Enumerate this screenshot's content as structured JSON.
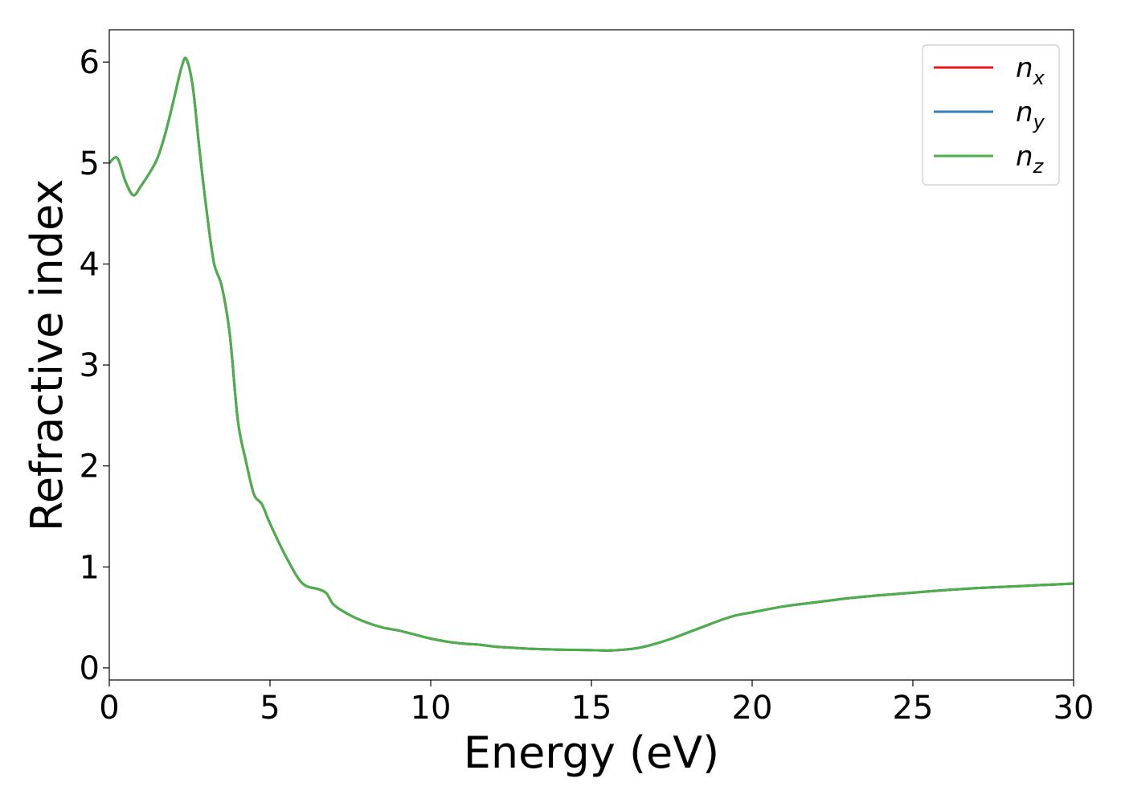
{
  "chart_data": {
    "type": "line",
    "xlabel": "Energy (eV)",
    "ylabel": "Refractive index",
    "xlim": [
      0,
      30
    ],
    "ylim": [
      -0.12,
      6.32
    ],
    "xticks": [
      0,
      5,
      10,
      15,
      20,
      25,
      30
    ],
    "yticks": [
      0,
      1,
      2,
      3,
      4,
      5,
      6
    ],
    "grid": false,
    "legend_position": "top-right",
    "x": [
      0,
      0.25,
      0.5,
      0.75,
      1.0,
      1.25,
      1.5,
      1.75,
      2.0,
      2.25,
      2.4,
      2.6,
      2.8,
      3.0,
      3.25,
      3.5,
      3.75,
      4.0,
      4.25,
      4.5,
      4.75,
      5.0,
      5.5,
      6.0,
      6.5,
      6.75,
      7.0,
      7.5,
      8.0,
      8.5,
      9.0,
      9.5,
      10.0,
      10.5,
      11.0,
      11.5,
      12.0,
      12.5,
      13.0,
      13.5,
      14.0,
      14.5,
      15.0,
      15.5,
      16.0,
      16.5,
      17.0,
      17.5,
      18.0,
      18.5,
      19.0,
      19.5,
      20.0,
      21.0,
      22.0,
      23.0,
      24.0,
      25.0,
      26.0,
      27.0,
      28.0,
      29.0,
      30.0
    ],
    "series": [
      {
        "name": "n_x",
        "color": "#e41a1c",
        "values": [
          5.0,
          5.05,
          4.82,
          4.68,
          4.78,
          4.9,
          5.05,
          5.3,
          5.62,
          5.95,
          6.03,
          5.75,
          5.15,
          4.6,
          4.02,
          3.78,
          3.3,
          2.45,
          2.05,
          1.72,
          1.62,
          1.43,
          1.1,
          0.84,
          0.78,
          0.74,
          0.62,
          0.52,
          0.45,
          0.4,
          0.37,
          0.33,
          0.29,
          0.26,
          0.24,
          0.23,
          0.21,
          0.2,
          0.19,
          0.185,
          0.18,
          0.178,
          0.176,
          0.172,
          0.18,
          0.2,
          0.24,
          0.29,
          0.35,
          0.41,
          0.47,
          0.52,
          0.55,
          0.61,
          0.65,
          0.69,
          0.72,
          0.745,
          0.77,
          0.79,
          0.805,
          0.82,
          0.835
        ]
      },
      {
        "name": "n_y",
        "color": "#377eb8",
        "values": [
          5.0,
          5.05,
          4.82,
          4.68,
          4.78,
          4.9,
          5.05,
          5.3,
          5.62,
          5.95,
          6.03,
          5.75,
          5.15,
          4.6,
          4.02,
          3.78,
          3.3,
          2.45,
          2.05,
          1.72,
          1.62,
          1.43,
          1.1,
          0.84,
          0.78,
          0.74,
          0.62,
          0.52,
          0.45,
          0.4,
          0.37,
          0.33,
          0.29,
          0.26,
          0.24,
          0.23,
          0.21,
          0.2,
          0.19,
          0.185,
          0.18,
          0.178,
          0.176,
          0.172,
          0.18,
          0.2,
          0.24,
          0.29,
          0.35,
          0.41,
          0.47,
          0.52,
          0.55,
          0.61,
          0.65,
          0.69,
          0.72,
          0.745,
          0.77,
          0.79,
          0.805,
          0.82,
          0.835
        ]
      },
      {
        "name": "n_z",
        "color": "#4daf4a",
        "values": [
          5.0,
          5.05,
          4.82,
          4.68,
          4.78,
          4.9,
          5.05,
          5.3,
          5.62,
          5.95,
          6.03,
          5.75,
          5.15,
          4.6,
          4.02,
          3.78,
          3.3,
          2.45,
          2.05,
          1.72,
          1.62,
          1.43,
          1.1,
          0.84,
          0.78,
          0.74,
          0.62,
          0.52,
          0.45,
          0.4,
          0.37,
          0.33,
          0.29,
          0.26,
          0.24,
          0.23,
          0.21,
          0.2,
          0.19,
          0.185,
          0.18,
          0.178,
          0.176,
          0.172,
          0.18,
          0.2,
          0.24,
          0.29,
          0.35,
          0.41,
          0.47,
          0.52,
          0.55,
          0.61,
          0.65,
          0.69,
          0.72,
          0.745,
          0.77,
          0.79,
          0.805,
          0.82,
          0.835
        ]
      }
    ],
    "legend": [
      {
        "base": "n",
        "sub": "x",
        "color": "#e41a1c"
      },
      {
        "base": "n",
        "sub": "y",
        "color": "#377eb8"
      },
      {
        "base": "n",
        "sub": "z",
        "color": "#4daf4a"
      }
    ]
  }
}
